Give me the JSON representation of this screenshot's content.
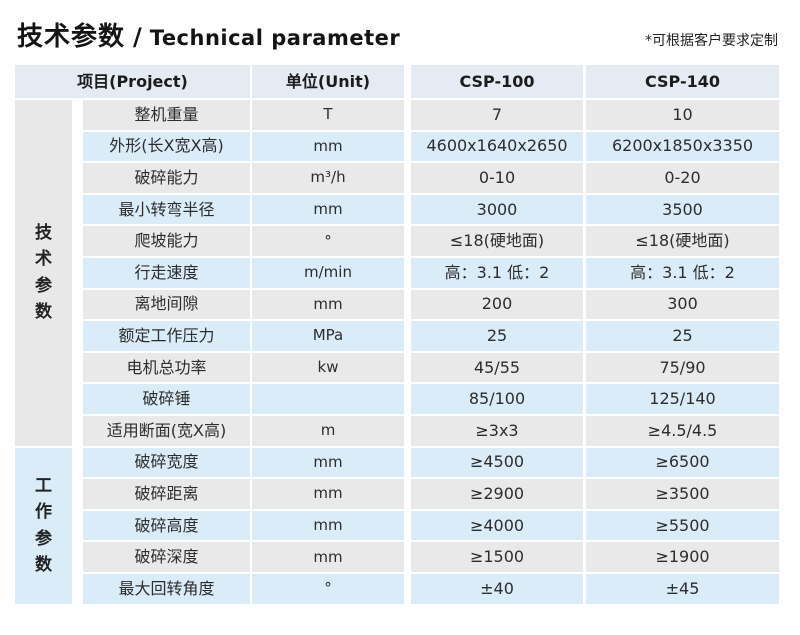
{
  "page": {
    "title_zh": "技术参数",
    "title_sep": "/",
    "title_en": "Technical parameter",
    "note": "*可根据客户要求定制"
  },
  "colors": {
    "header_row_bg": "#e4ebf2",
    "row_gray_bg": "#e9e9e9",
    "row_blue_bg": "#d9ecf8",
    "section_tech_bg": "#e8e8e8",
    "section_work_bg": "#d9ecf8",
    "text": "#2d2d2d"
  },
  "table": {
    "header": {
      "project": "项目(Project)",
      "unit": "单位(Unit)",
      "model_1": "CSP-100",
      "model_2": "CSP-140"
    },
    "sections": [
      {
        "label": "技\n术\n参\n数",
        "row_count": 11
      },
      {
        "label": "工\n作\n参\n数",
        "row_count": 5
      }
    ],
    "rows": [
      {
        "param": "整机重量",
        "unit": "T",
        "csp100": "7",
        "csp140": "10"
      },
      {
        "param": "外形(长X宽X高)",
        "unit": "mm",
        "csp100": "4600x1640x2650",
        "csp140": "6200x1850x3350"
      },
      {
        "param": "破碎能力",
        "unit": "m³/h",
        "csp100": "0-10",
        "csp140": "0-20"
      },
      {
        "param": "最小转弯半径",
        "unit": "mm",
        "csp100": "3000",
        "csp140": "3500"
      },
      {
        "param": "爬坡能力",
        "unit": "°",
        "csp100": "≤18(硬地面)",
        "csp140": "≤18(硬地面)"
      },
      {
        "param": "行走速度",
        "unit": "m/min",
        "csp100": "高：3.1 低：2",
        "csp140": "高：3.1 低：2"
      },
      {
        "param": "离地间隙",
        "unit": "mm",
        "csp100": "200",
        "csp140": "300"
      },
      {
        "param": "额定工作压力",
        "unit": "MPa",
        "csp100": "25",
        "csp140": "25"
      },
      {
        "param": "电机总功率",
        "unit": "kw",
        "csp100": "45/55",
        "csp140": "75/90"
      },
      {
        "param": "破碎锤",
        "unit": "",
        "csp100": "85/100",
        "csp140": "125/140"
      },
      {
        "param": "适用断面(宽X高)",
        "unit": "m",
        "csp100": "≥3x3",
        "csp140": "≥4.5/4.5"
      },
      {
        "param": "破碎宽度",
        "unit": "mm",
        "csp100": "≥4500",
        "csp140": "≥6500"
      },
      {
        "param": "破碎距离",
        "unit": "mm",
        "csp100": "≥2900",
        "csp140": "≥3500"
      },
      {
        "param": "破碎高度",
        "unit": "mm",
        "csp100": "≥4000",
        "csp140": "≥5500"
      },
      {
        "param": "破碎深度",
        "unit": "mm",
        "csp100": "≥1500",
        "csp140": "≥1900"
      },
      {
        "param": "最大回转角度",
        "unit": "°",
        "csp100": "±40",
        "csp140": "±45"
      }
    ]
  }
}
